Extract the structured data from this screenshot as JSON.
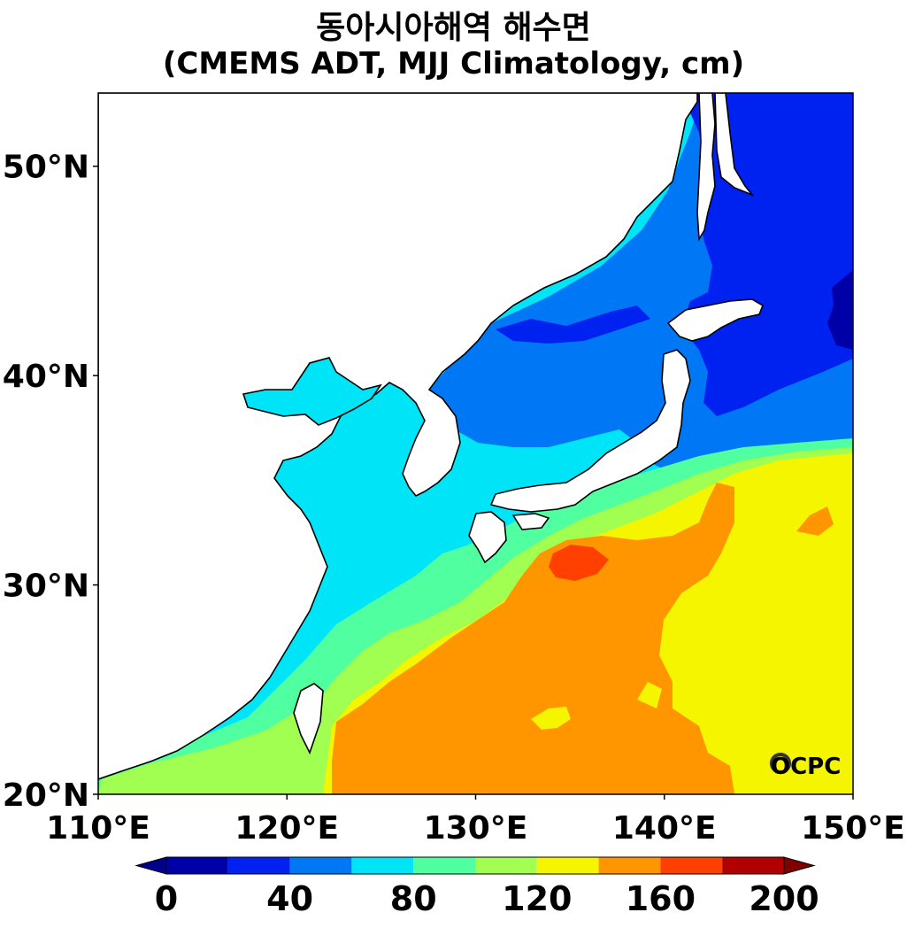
{
  "title": "동아시아해역 해수면",
  "subtitle": "(CMEMS ADT, MJJ Climatology, cm)",
  "logo_text": "OCPC",
  "chart_data": {
    "type": "heatmap",
    "title": "동아시아해역 해수면",
    "subtitle": "(CMEMS ADT, MJJ Climatology, cm)",
    "xlim": [
      110,
      150
    ],
    "ylim": [
      20,
      53.5
    ],
    "xticks": [
      110,
      120,
      130,
      140,
      150
    ],
    "xtick_labels": [
      "110°E",
      "120°E",
      "130°E",
      "140°E",
      "150°E"
    ],
    "yticks": [
      20,
      30,
      40,
      50
    ],
    "ytick_labels": [
      "20°N",
      "30°N",
      "40°N",
      "50°N"
    ],
    "colorbar": {
      "levels": [
        0,
        20,
        40,
        60,
        80,
        100,
        120,
        140,
        160,
        180,
        200
      ],
      "colors": [
        "#0000a8",
        "#0022f0",
        "#0078f5",
        "#00e4f8",
        "#50ffa0",
        "#a0ff50",
        "#f5f500",
        "#ff9600",
        "#ff4000",
        "#b00000"
      ],
      "under_color": "#00008a",
      "over_color": "#800000",
      "extend": "both",
      "tick_labels": [
        "0",
        "40",
        "80",
        "120",
        "160",
        "200"
      ],
      "ticks": [
        0,
        40,
        80,
        120,
        160,
        200
      ]
    }
  }
}
